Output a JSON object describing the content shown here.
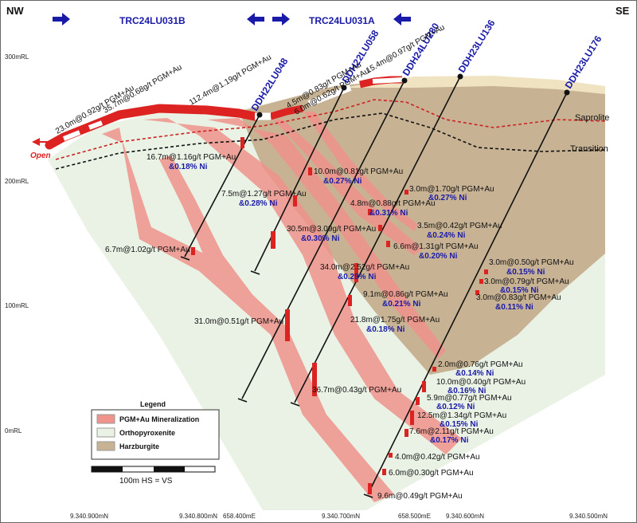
{
  "orientation": {
    "left": "NW",
    "right": "SE"
  },
  "sections": [
    {
      "label": "TRC24LU031B",
      "arrows": [
        "right"
      ]
    },
    {
      "label": "TRC24LU031A",
      "arrows": [
        "left",
        "right",
        "left"
      ]
    }
  ],
  "elevations": [
    "300mRL",
    "200mRL",
    "100mRL",
    "0mRL"
  ],
  "northings": [
    "9.340.900mN",
    "9.340.800mN",
    "658.400mE",
    "9.340.700mN",
    "658.500mE",
    "9.340.600mN",
    "9.340.500mN"
  ],
  "holes": [
    "DDH22LU048",
    "DDH22LU058",
    "DDH24LU280",
    "DDH23LU136",
    "DDH23LU176"
  ],
  "surface_intercepts": [
    "23.0m@0.92g/t PGM+Au",
    "35.7m@0.68g/t PGM+Au",
    "112.4m@1.19g/t PGM+Au",
    "4.5m@0.83g/t PGM+Au",
    "6.0m@0.62g/t PGM+Au",
    "15.4m@0.97g/t PGM+Au"
  ],
  "intercepts": [
    {
      "pgm": "16.7m@1.16g/t PGM+Au",
      "ni": "&0.18% Ni"
    },
    {
      "pgm": "7.5m@1.27g/t PGM+Au",
      "ni": "&0.28% Ni"
    },
    {
      "pgm": "6.7m@1.02g/t PGM+Au",
      "ni": ""
    },
    {
      "pgm": "10.0m@0.81g/t PGM+Au",
      "ni": "&0.27% Ni"
    },
    {
      "pgm": "4.8m@0.88g/t PGM+Au",
      "ni": "&0.31% Ni"
    },
    {
      "pgm": "30.5m@3.09g/t PGM+Au",
      "ni": "&0.30% Ni"
    },
    {
      "pgm": "31.0m@0.51g/t PGM+Au",
      "ni": ""
    },
    {
      "pgm": "34.0m@2.52g/t PGM+Au",
      "ni": "&0.29% Ni"
    },
    {
      "pgm": "9.1m@0.86g/t PGM+Au",
      "ni": "&0.21% Ni"
    },
    {
      "pgm": "21.8m@1.75g/t PGM+Au",
      "ni": "&0.18% Ni"
    },
    {
      "pgm": "36.7m@0.43g/t PGM+Au",
      "ni": ""
    },
    {
      "pgm": "3.0m@1.70g/t PGM+Au",
      "ni": "&0.27% Ni"
    },
    {
      "pgm": "3.5m@0.42g/t PGM+Au",
      "ni": "&0.24% Ni"
    },
    {
      "pgm": "6.6m@1.31g/t PGM+Au",
      "ni": "&0.20% Ni"
    },
    {
      "pgm": "3.0m@0.50g/t PGM+Au",
      "ni": "&0.15% Ni"
    },
    {
      "pgm": "3.0m@0.79g/t PGM+Au",
      "ni": "&0.15% Ni"
    },
    {
      "pgm": "3.0m@0.83g/t PGM+Au",
      "ni": "&0.11% Ni"
    },
    {
      "pgm": "2.0m@0.76g/t PGM+Au",
      "ni": "&0.14% Ni"
    },
    {
      "pgm": "10.0m@0.40g/t PGM+Au",
      "ni": "&0.16% Ni"
    },
    {
      "pgm": "5.9m@0.77g/t PGM+Au",
      "ni": "&0.12% Ni"
    },
    {
      "pgm": "12.5m@1.34g/t PGM+Au",
      "ni": "&0.15% Ni"
    },
    {
      "pgm": "7.6m@2.11g/t PGM+Au",
      "ni": "&0.17% Ni"
    },
    {
      "pgm": "4.0m@0.42g/t PGM+Au",
      "ni": ""
    },
    {
      "pgm": "6.0m@0.30g/t PGM+Au",
      "ni": ""
    },
    {
      "pgm": "9.6m@0.49g/t PGM+Au",
      "ni": ""
    }
  ],
  "horizons": {
    "saprolite": "Saprolite",
    "transition": "Transition",
    "open": "Open"
  },
  "legend": {
    "title": "Legend",
    "items": [
      {
        "label": "PGM+Au Mineralization",
        "color": "#f0938c"
      },
      {
        "label": "Orthopyroxenite",
        "color": "#e9f2e4"
      },
      {
        "label": "Harzburgite",
        "color": "#c7b293"
      }
    ]
  },
  "scale": {
    "label": "100m  HS = VS"
  },
  "colors": {
    "hole_label": "#1a1aa8",
    "surface_red": "#dd2222",
    "mineralization": "#f0938c",
    "harzburgite": "#c7b293",
    "orthopyroxenite": "#e9f2e4"
  }
}
